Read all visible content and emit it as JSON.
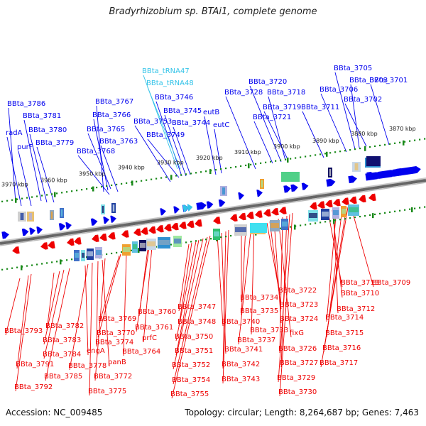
{
  "title": "Bradyrhizobium sp. BTAi1, complete genome",
  "footer": {
    "accession": "Accession: NC_009485",
    "summary": "Topology: circular; Length: 8,264,687 bp; Genes: 7,463"
  },
  "colors": {
    "forward_gene": "#0000ee",
    "reverse_gene": "#ee0000",
    "trna": "#33c3e8",
    "tick": "#1a8a1a",
    "backbone": "#888888"
  },
  "ruler_upper": [
    "3970 kbp",
    "3960 kbp",
    "3950 kbp",
    "3940 kbp",
    "3930 kbp",
    "3920 kbp",
    "3910 kbp",
    "3900 kbp",
    "3890 kbp",
    "3880 kbp",
    "3870 kbp"
  ],
  "forward_labels": [
    "BBta_3786",
    "radA",
    "purF",
    "BBta_3781",
    "BBta_3780",
    "BBta_3779",
    "BBta_3767",
    "BBta_3766",
    "BBta_3765",
    "BBta_3768",
    "BBta_3763",
    "BBta_3753",
    "BBta_3749",
    "BBta_3746",
    "BBta_3745",
    "BBta_3744",
    "eutB",
    "eutC",
    "BBta_3728",
    "BBta_3720",
    "BBta_3718",
    "BBta_3719",
    "BBta_3721",
    "BBta_3711",
    "BBta_3705",
    "BBta_3703",
    "BBta_3706",
    "BBta_3701",
    "BBta_3702"
  ],
  "trna_labels": [
    "BBta_tRNA47",
    "BBta_tRNA48"
  ],
  "reverse_labels": [
    "BBta_3793",
    "BBta_3791",
    "BBta_3792",
    "BBta_3782",
    "BBta_3783",
    "BBta_3784",
    "BBta_3785",
    "engA",
    "BBta_3778",
    "BBta_3775",
    "BBta_3774",
    "panB",
    "BBta_3772",
    "BBta_3769",
    "BBta_3770",
    "BBta_3764",
    "BBta_3760",
    "BBta_3761",
    "prfC",
    "BBta_3747",
    "BBta_3748",
    "BBta_3750",
    "BBta_3751",
    "BBta_3752",
    "BBta_3754",
    "BBta_3755",
    "BBta_3740",
    "BBta_3741",
    "BBta_3742",
    "BBta_3743",
    "BBta_3734",
    "BBta_3735",
    "BBta_3737",
    "BBta_3733",
    "BBta_3722",
    "BBta_3723",
    "BBta_3724",
    "fixG",
    "BBta_3726",
    "BBta_3727",
    "BBta_3729",
    "BBta_3730",
    "BBta_3713",
    "BBta_3710",
    "BBta_3712",
    "BBta_3714",
    "BBta_3715",
    "BBta_3716",
    "BBta_3717",
    "BBta_3709"
  ]
}
